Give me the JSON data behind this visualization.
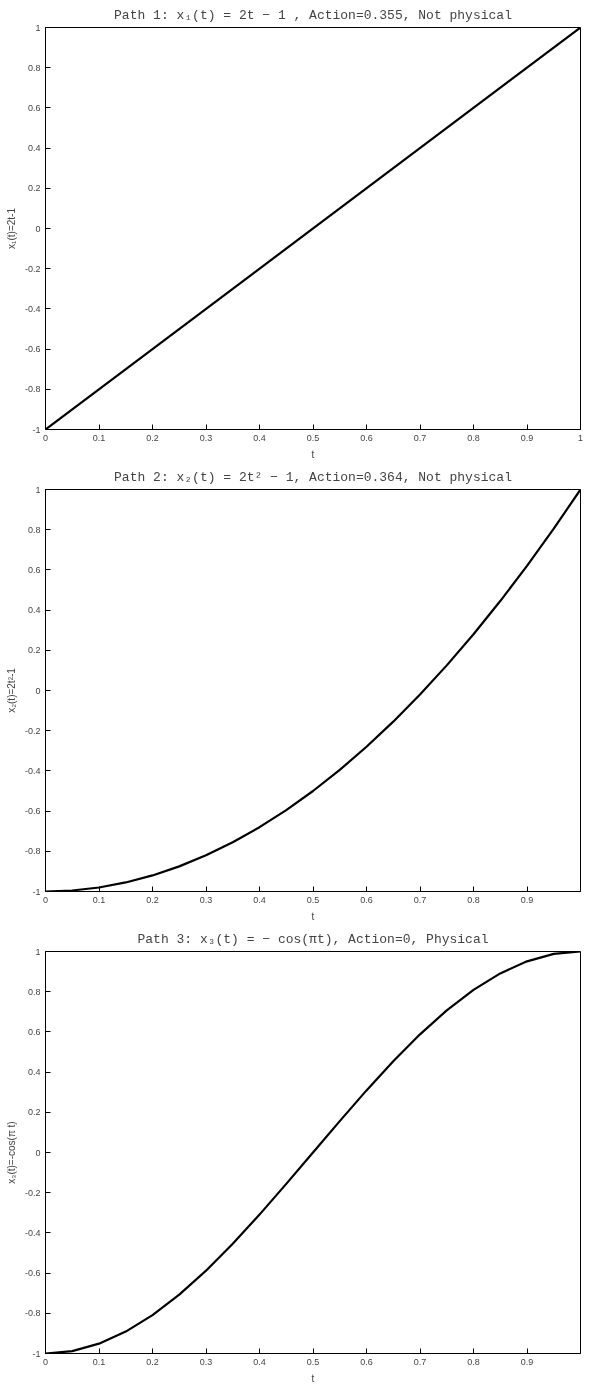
{
  "chart_data": [
    {
      "type": "line",
      "title": "Path 1: x₁(t) = 2t − 1 , Action=0.355, Not physical",
      "xlabel": "t",
      "ylabel": "x₁(t)=2t-1",
      "x": [
        0,
        1
      ],
      "series": [
        {
          "color": "#000000",
          "values": [
            -1,
            1
          ]
        }
      ],
      "xlim": [
        0,
        1
      ],
      "ylim": [
        -1,
        1
      ],
      "xticks": [
        0,
        0.1,
        0.2,
        0.3,
        0.4,
        0.5,
        0.6,
        0.7,
        0.8,
        0.9,
        1
      ],
      "yticks": [
        -1,
        -0.8,
        -0.6,
        -0.4,
        -0.2,
        0,
        0.2,
        0.4,
        0.6,
        0.8,
        1
      ],
      "grid": false
    },
    {
      "type": "line",
      "title": "Path 2: x₂(t) = 2t² − 1, Action=0.364, Not physical",
      "xlabel": "t",
      "ylabel": "x₂(t)=2t²-1",
      "x": [
        0,
        0.05,
        0.1,
        0.15,
        0.2,
        0.25,
        0.3,
        0.35,
        0.4,
        0.45,
        0.5,
        0.55,
        0.6,
        0.65,
        0.7,
        0.75,
        0.8,
        0.85,
        0.9,
        0.95,
        1
      ],
      "series": [
        {
          "color": "#000000",
          "values": [
            -1,
            -0.995,
            -0.98,
            -0.955,
            -0.92,
            -0.875,
            -0.82,
            -0.755,
            -0.68,
            -0.595,
            -0.5,
            -0.395,
            -0.28,
            -0.155,
            -0.02,
            0.125,
            0.28,
            0.445,
            0.62,
            0.805,
            1
          ]
        }
      ],
      "xlim": [
        0,
        1
      ],
      "ylim": [
        -1,
        1
      ],
      "xticks": [
        0,
        0.1,
        0.2,
        0.3,
        0.4,
        0.5,
        0.6,
        0.7,
        0.8,
        0.9
      ],
      "yticks": [
        -1,
        -0.8,
        -0.6,
        -0.4,
        -0.2,
        0,
        0.2,
        0.4,
        0.6,
        0.8,
        1
      ],
      "grid": false
    },
    {
      "type": "line",
      "title": "Path 3: x₃(t) = − cos(πt), Action=0, Physical",
      "xlabel": "t",
      "ylabel": "x₃(t)=-cos(π t)",
      "x": [
        0,
        0.05,
        0.1,
        0.15,
        0.2,
        0.25,
        0.3,
        0.35,
        0.4,
        0.45,
        0.5,
        0.55,
        0.6,
        0.65,
        0.7,
        0.75,
        0.8,
        0.85,
        0.9,
        0.95,
        1
      ],
      "series": [
        {
          "color": "#000000",
          "values": [
            -1,
            -0.988,
            -0.951,
            -0.891,
            -0.809,
            -0.707,
            -0.588,
            -0.454,
            -0.309,
            -0.156,
            0,
            0.156,
            0.309,
            0.454,
            0.588,
            0.707,
            0.809,
            0.891,
            0.951,
            0.988,
            1
          ]
        }
      ],
      "xlim": [
        0,
        1
      ],
      "ylim": [
        -1,
        1
      ],
      "xticks": [
        0,
        0.1,
        0.2,
        0.3,
        0.4,
        0.5,
        0.6,
        0.7,
        0.8,
        0.9
      ],
      "yticks": [
        -1,
        -0.8,
        -0.6,
        -0.4,
        -0.2,
        0,
        0.2,
        0.4,
        0.6,
        0.8,
        1
      ],
      "grid": false
    }
  ]
}
